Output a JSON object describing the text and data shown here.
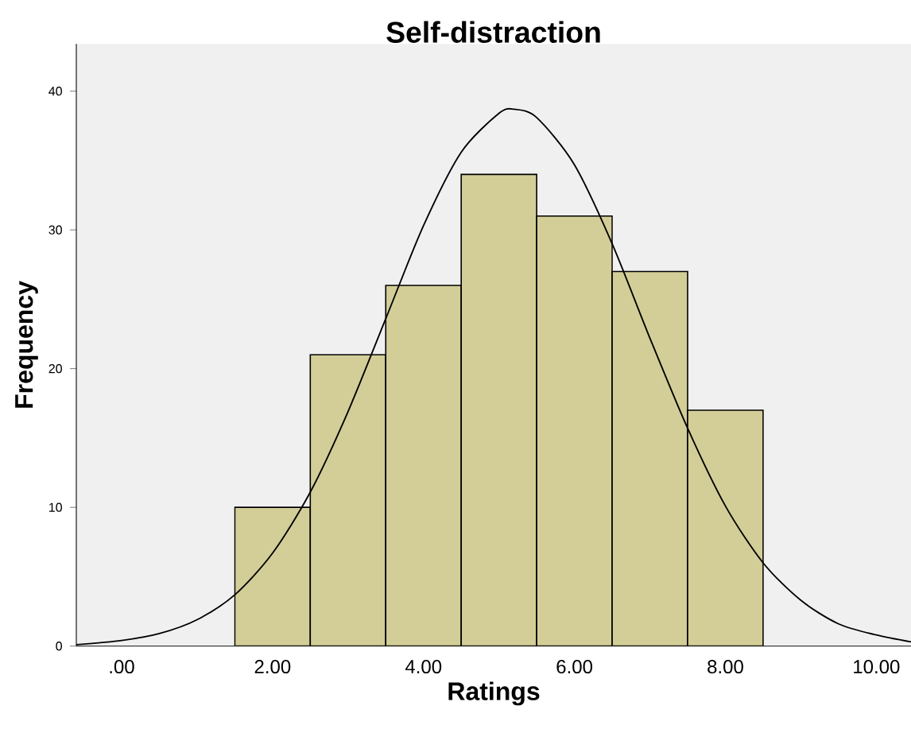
{
  "chart_data": {
    "type": "histogram",
    "title": "Self-distraction",
    "xlabel": "Ratings",
    "ylabel": "Frequency",
    "bins": [
      1.5,
      2.5,
      3.5,
      4.5,
      5.5,
      6.5,
      7.5,
      8.5
    ],
    "values": [
      10,
      21,
      26,
      34,
      31,
      27,
      17
    ],
    "color": "#d3ce97",
    "series": [
      {
        "type": "line",
        "color": "#000000",
        "x": [
          -0.6,
          0,
          0.5,
          1,
          1.5,
          2,
          2.5,
          3,
          3.5,
          4,
          4.5,
          5,
          5.2,
          5.5,
          6,
          6.5,
          7,
          7.5,
          8,
          8.5,
          9,
          9.5,
          10,
          10.46
        ],
        "values": [
          0.1,
          0.4,
          0.9,
          1.9,
          3.7,
          6.7,
          11.1,
          16.9,
          23.6,
          30.3,
          35.6,
          38.4,
          38.7,
          38.1,
          34.7,
          29.0,
          22.2,
          15.7,
          10.1,
          6.0,
          3.3,
          1.6,
          0.8,
          0.3
        ]
      }
    ],
    "xlim": [
      -0.6,
      10.46
    ],
    "xticks": [
      {
        "value": 0,
        "label": ".00"
      },
      {
        "value": 2,
        "label": "2.00"
      },
      {
        "value": 4,
        "label": "4.00"
      },
      {
        "value": 6,
        "label": "6.00"
      },
      {
        "value": 8,
        "label": "8.00"
      },
      {
        "value": 10,
        "label": "10.00"
      }
    ],
    "ylim": [
      0,
      43.4
    ],
    "yticks": [
      0,
      10,
      20,
      30,
      40
    ],
    "grid": false
  }
}
